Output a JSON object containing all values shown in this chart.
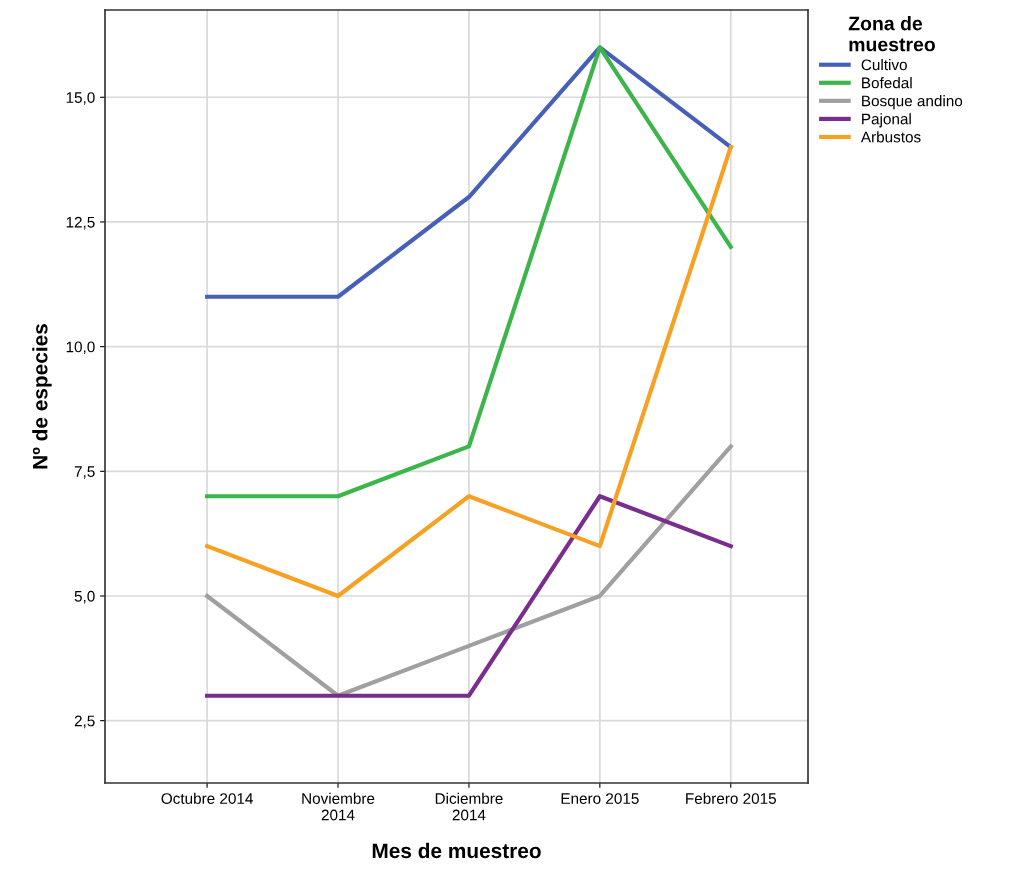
{
  "chart_data": {
    "type": "line",
    "xlabel": "Mes de muestreo",
    "ylabel": "Nº de especies",
    "legend_title": "Zona de\nmuestreo",
    "categories": [
      "Octubre 2014",
      "Noviembre\n2014",
      "Diciembre\n2014",
      "Enero 2015",
      "Febrero 2015"
    ],
    "series": [
      {
        "name": "Cultivo",
        "color": "#4660b8",
        "values": [
          11,
          11,
          13,
          16,
          14
        ]
      },
      {
        "name": "Bofedal",
        "color": "#3cb54a",
        "values": [
          7,
          7,
          8,
          16,
          12
        ]
      },
      {
        "name": "Bosque andino",
        "color": "#a0a0a0",
        "values": [
          5,
          3,
          4,
          5,
          8
        ]
      },
      {
        "name": "Pajonal",
        "color": "#7b2d8e",
        "values": [
          3,
          3,
          3,
          7,
          6
        ]
      },
      {
        "name": "Arbustos",
        "color": "#f7a124",
        "values": [
          6,
          5,
          7,
          6,
          14
        ]
      }
    ],
    "ylim": [
      1.25,
      16.75
    ],
    "yticks": [
      {
        "value": 2.5,
        "label": "2,5"
      },
      {
        "value": 5,
        "label": "5,0"
      },
      {
        "value": 7.5,
        "label": "7,5"
      },
      {
        "value": 10,
        "label": "10,0"
      },
      {
        "value": 12.5,
        "label": "12,5"
      },
      {
        "value": 15,
        "label": "15,0"
      }
    ],
    "grid": true,
    "legend": "top right",
    "marker": "none",
    "line_style": "solid"
  }
}
